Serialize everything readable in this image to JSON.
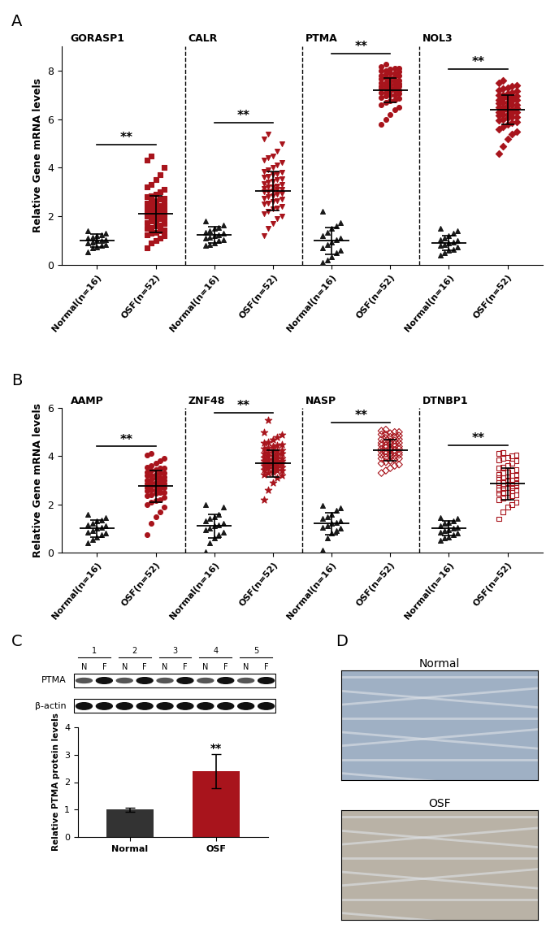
{
  "chart_data": [
    {
      "type": "scatter",
      "panel_label": "A",
      "ylabel": "Relative Gene mRNA levels",
      "ylim": [
        0,
        9
      ],
      "yticks": [
        0,
        2,
        4,
        6,
        8
      ],
      "groups": [
        {
          "name": "GORASP1",
          "significance": "**",
          "series": [
            {
              "name": "Normal(n=16)",
              "color": "#1a1a1a",
              "marker": "triangle",
              "mean": 1.0,
              "sd": 0.28,
              "values": [
                0.55,
                0.7,
                0.75,
                0.8,
                0.85,
                0.9,
                0.95,
                1.0,
                1.0,
                1.05,
                1.1,
                1.15,
                1.2,
                1.25,
                1.3,
                1.4
              ]
            },
            {
              "name": "OSF(n=52)",
              "color": "#a8141c",
              "marker": "square",
              "mean": 2.1,
              "sd": 0.75,
              "values": [
                0.7,
                0.9,
                1.0,
                1.1,
                1.2,
                1.25,
                1.3,
                1.35,
                1.4,
                1.45,
                1.5,
                1.55,
                1.6,
                1.65,
                1.7,
                1.75,
                1.8,
                1.85,
                1.9,
                1.95,
                2.0,
                2.0,
                2.05,
                2.1,
                2.1,
                2.15,
                2.2,
                2.2,
                2.25,
                2.3,
                2.35,
                2.4,
                2.4,
                2.45,
                2.5,
                2.55,
                2.6,
                2.65,
                2.7,
                2.75,
                2.8,
                2.85,
                2.9,
                3.0,
                3.1,
                3.2,
                3.3,
                3.5,
                3.7,
                4.0,
                4.3,
                4.5
              ]
            }
          ]
        },
        {
          "name": "CALR",
          "significance": "**",
          "series": [
            {
              "name": "Normal(n=16)",
              "color": "#1a1a1a",
              "marker": "triangle",
              "mean": 1.25,
              "sd": 0.33,
              "values": [
                0.8,
                0.85,
                0.9,
                1.0,
                1.05,
                1.1,
                1.15,
                1.2,
                1.25,
                1.3,
                1.35,
                1.4,
                1.5,
                1.55,
                1.65,
                1.8
              ]
            },
            {
              "name": "OSF(n=52)",
              "color": "#a8141c",
              "marker": "triangle_down",
              "mean": 3.05,
              "sd": 0.8,
              "values": [
                1.2,
                1.5,
                1.7,
                1.9,
                2.0,
                2.1,
                2.2,
                2.3,
                2.35,
                2.4,
                2.5,
                2.55,
                2.6,
                2.65,
                2.7,
                2.75,
                2.8,
                2.85,
                2.9,
                2.95,
                3.0,
                3.0,
                3.05,
                3.1,
                3.1,
                3.15,
                3.2,
                3.2,
                3.25,
                3.3,
                3.35,
                3.4,
                3.45,
                3.5,
                3.55,
                3.6,
                3.65,
                3.7,
                3.75,
                3.8,
                3.85,
                3.9,
                4.0,
                4.1,
                4.2,
                4.3,
                4.4,
                4.5,
                4.7,
                5.0,
                5.2,
                5.4
              ]
            }
          ]
        },
        {
          "name": "PTMA",
          "significance": "**",
          "series": [
            {
              "name": "Normal(n=16)",
              "color": "#1a1a1a",
              "marker": "triangle",
              "mean": 1.0,
              "sd": 0.55,
              "values": [
                0.1,
                0.2,
                0.35,
                0.5,
                0.6,
                0.7,
                0.85,
                0.95,
                1.05,
                1.1,
                1.2,
                1.35,
                1.5,
                1.6,
                1.75,
                2.2
              ]
            },
            {
              "name": "OSF(n=52)",
              "color": "#a8141c",
              "marker": "circle",
              "mean": 7.2,
              "sd": 0.5,
              "values": [
                5.8,
                6.0,
                6.2,
                6.4,
                6.5,
                6.6,
                6.7,
                6.75,
                6.8,
                6.85,
                6.9,
                6.95,
                7.0,
                7.0,
                7.05,
                7.1,
                7.1,
                7.15,
                7.2,
                7.2,
                7.25,
                7.25,
                7.3,
                7.3,
                7.35,
                7.35,
                7.4,
                7.4,
                7.45,
                7.45,
                7.5,
                7.5,
                7.55,
                7.6,
                7.6,
                7.65,
                7.7,
                7.7,
                7.75,
                7.8,
                7.8,
                7.85,
                7.9,
                7.9,
                7.95,
                8.0,
                8.0,
                8.05,
                8.1,
                8.1,
                8.15,
                8.25
              ]
            }
          ]
        },
        {
          "name": "NOL3",
          "significance": "**",
          "series": [
            {
              "name": "Normal(n=16)",
              "color": "#1a1a1a",
              "marker": "triangle",
              "mean": 0.9,
              "sd": 0.3,
              "values": [
                0.4,
                0.5,
                0.6,
                0.65,
                0.75,
                0.8,
                0.85,
                0.9,
                0.95,
                1.0,
                1.05,
                1.1,
                1.2,
                1.3,
                1.4,
                1.5
              ]
            },
            {
              "name": "OSF(n=52)",
              "color": "#a8141c",
              "marker": "diamond",
              "mean": 6.4,
              "sd": 0.6,
              "values": [
                4.6,
                4.9,
                5.2,
                5.4,
                5.5,
                5.6,
                5.7,
                5.8,
                5.85,
                5.9,
                5.95,
                6.0,
                6.05,
                6.1,
                6.1,
                6.15,
                6.2,
                6.2,
                6.25,
                6.3,
                6.3,
                6.35,
                6.4,
                6.4,
                6.45,
                6.5,
                6.5,
                6.55,
                6.6,
                6.6,
                6.65,
                6.7,
                6.7,
                6.75,
                6.8,
                6.8,
                6.85,
                6.9,
                6.9,
                6.95,
                7.0,
                7.0,
                7.05,
                7.1,
                7.15,
                7.2,
                7.25,
                7.3,
                7.35,
                7.4,
                7.5,
                7.6
              ]
            }
          ]
        }
      ]
    },
    {
      "type": "scatter",
      "panel_label": "B",
      "ylabel": "Relative Gene mRNA levels",
      "ylim": [
        0,
        6
      ],
      "yticks": [
        0,
        2,
        4,
        6
      ],
      "groups": [
        {
          "name": "AAMP",
          "significance": "**",
          "series": [
            {
              "name": "Normal(n=16)",
              "color": "#1a1a1a",
              "marker": "triangle",
              "mean": 1.0,
              "sd": 0.35,
              "values": [
                0.4,
                0.55,
                0.65,
                0.75,
                0.8,
                0.85,
                0.9,
                1.0,
                1.05,
                1.1,
                1.15,
                1.2,
                1.3,
                1.35,
                1.45,
                1.6
              ]
            },
            {
              "name": "OSF(n=52)",
              "color": "#a8141c",
              "marker": "circle",
              "mean": 2.75,
              "sd": 0.65,
              "values": [
                0.75,
                1.2,
                1.5,
                1.7,
                1.9,
                2.0,
                2.1,
                2.15,
                2.2,
                2.3,
                2.35,
                2.4,
                2.45,
                2.5,
                2.5,
                2.55,
                2.6,
                2.6,
                2.65,
                2.7,
                2.7,
                2.75,
                2.75,
                2.8,
                2.85,
                2.85,
                2.9,
                2.9,
                2.95,
                3.0,
                3.0,
                3.05,
                3.1,
                3.1,
                3.15,
                3.2,
                3.2,
                3.25,
                3.3,
                3.3,
                3.35,
                3.4,
                3.45,
                3.5,
                3.5,
                3.55,
                3.6,
                3.7,
                3.8,
                3.9,
                4.05,
                4.1
              ]
            }
          ]
        },
        {
          "name": "ZNF48",
          "significance": "**",
          "series": [
            {
              "name": "Normal(n=16)",
              "color": "#1a1a1a",
              "marker": "triangle",
              "mean": 1.1,
              "sd": 0.5,
              "values": [
                0.05,
                0.4,
                0.6,
                0.75,
                0.85,
                0.95,
                1.0,
                1.1,
                1.15,
                1.2,
                1.3,
                1.4,
                1.5,
                1.6,
                1.9,
                2.0
              ]
            },
            {
              "name": "OSF(n=52)",
              "color": "#a8141c",
              "marker": "star",
              "mean": 3.7,
              "sd": 0.55,
              "values": [
                2.2,
                2.6,
                2.9,
                3.1,
                3.2,
                3.25,
                3.3,
                3.35,
                3.4,
                3.4,
                3.45,
                3.5,
                3.5,
                3.55,
                3.55,
                3.6,
                3.6,
                3.65,
                3.65,
                3.7,
                3.7,
                3.7,
                3.75,
                3.75,
                3.8,
                3.8,
                3.85,
                3.85,
                3.9,
                3.9,
                3.95,
                4.0,
                4.0,
                4.05,
                4.1,
                4.1,
                4.15,
                4.2,
                4.2,
                4.25,
                4.3,
                4.35,
                4.4,
                4.45,
                4.5,
                4.55,
                4.6,
                4.7,
                4.8,
                4.9,
                5.0,
                5.5
              ]
            }
          ]
        },
        {
          "name": "NASP",
          "significance": "**",
          "series": [
            {
              "name": "Normal(n=16)",
              "color": "#1a1a1a",
              "marker": "triangle",
              "mean": 1.2,
              "sd": 0.45,
              "values": [
                0.1,
                0.6,
                0.8,
                0.9,
                1.0,
                1.05,
                1.1,
                1.2,
                1.25,
                1.3,
                1.4,
                1.5,
                1.6,
                1.75,
                1.85,
                1.95
              ]
            },
            {
              "name": "OSF(n=52)",
              "color": "#a8141c",
              "marker": "diamond_open",
              "mean": 4.25,
              "sd": 0.45,
              "values": [
                3.3,
                3.4,
                3.5,
                3.6,
                3.65,
                3.7,
                3.75,
                3.8,
                3.85,
                3.9,
                3.9,
                3.95,
                4.0,
                4.0,
                4.05,
                4.05,
                4.1,
                4.1,
                4.15,
                4.15,
                4.2,
                4.2,
                4.25,
                4.25,
                4.3,
                4.3,
                4.35,
                4.35,
                4.4,
                4.4,
                4.45,
                4.45,
                4.5,
                4.5,
                4.55,
                4.55,
                4.6,
                4.6,
                4.65,
                4.7,
                4.7,
                4.75,
                4.8,
                4.8,
                4.85,
                4.9,
                4.9,
                4.95,
                5.0,
                5.0,
                5.05,
                5.1
              ]
            }
          ]
        },
        {
          "name": "DTNBP1",
          "significance": "**",
          "series": [
            {
              "name": "Normal(n=16)",
              "color": "#1a1a1a",
              "marker": "triangle",
              "mean": 1.0,
              "sd": 0.3,
              "values": [
                0.5,
                0.6,
                0.65,
                0.75,
                0.8,
                0.85,
                0.9,
                0.95,
                1.0,
                1.05,
                1.1,
                1.2,
                1.25,
                1.3,
                1.4,
                1.45
              ]
            },
            {
              "name": "OSF(n=52)",
              "color": "#a8141c",
              "marker": "square_open",
              "mean": 2.85,
              "sd": 0.65,
              "values": [
                1.4,
                1.7,
                1.9,
                2.0,
                2.1,
                2.2,
                2.25,
                2.3,
                2.35,
                2.4,
                2.45,
                2.5,
                2.5,
                2.55,
                2.6,
                2.6,
                2.65,
                2.7,
                2.7,
                2.75,
                2.8,
                2.8,
                2.85,
                2.85,
                2.9,
                2.9,
                2.95,
                3.0,
                3.0,
                3.05,
                3.1,
                3.1,
                3.15,
                3.2,
                3.2,
                3.25,
                3.3,
                3.35,
                3.4,
                3.45,
                3.5,
                3.55,
                3.6,
                3.7,
                3.8,
                3.85,
                3.9,
                3.95,
                4.0,
                4.05,
                4.1,
                4.15
              ]
            }
          ]
        }
      ]
    },
    {
      "type": "bar",
      "categories": [
        "Normal",
        "OSF"
      ],
      "values": [
        1.0,
        2.4
      ],
      "errors": [
        0.07,
        0.62
      ],
      "colors": [
        "#333333",
        "#a8141c"
      ],
      "ylabel": "Relative PTMA protein levels",
      "ylim": [
        0,
        4
      ],
      "yticks": [
        0,
        1,
        2,
        3,
        4
      ],
      "significance": [
        null,
        "**"
      ]
    }
  ],
  "blot": {
    "panel_label": "C",
    "lanes": [
      "1",
      "2",
      "3",
      "4",
      "5"
    ],
    "lane_labels": [
      "N",
      "F"
    ],
    "rows": [
      "PTMA",
      "β-actin"
    ]
  },
  "ihc": {
    "panel_label": "D",
    "images": [
      "Normal",
      "OSF"
    ]
  }
}
